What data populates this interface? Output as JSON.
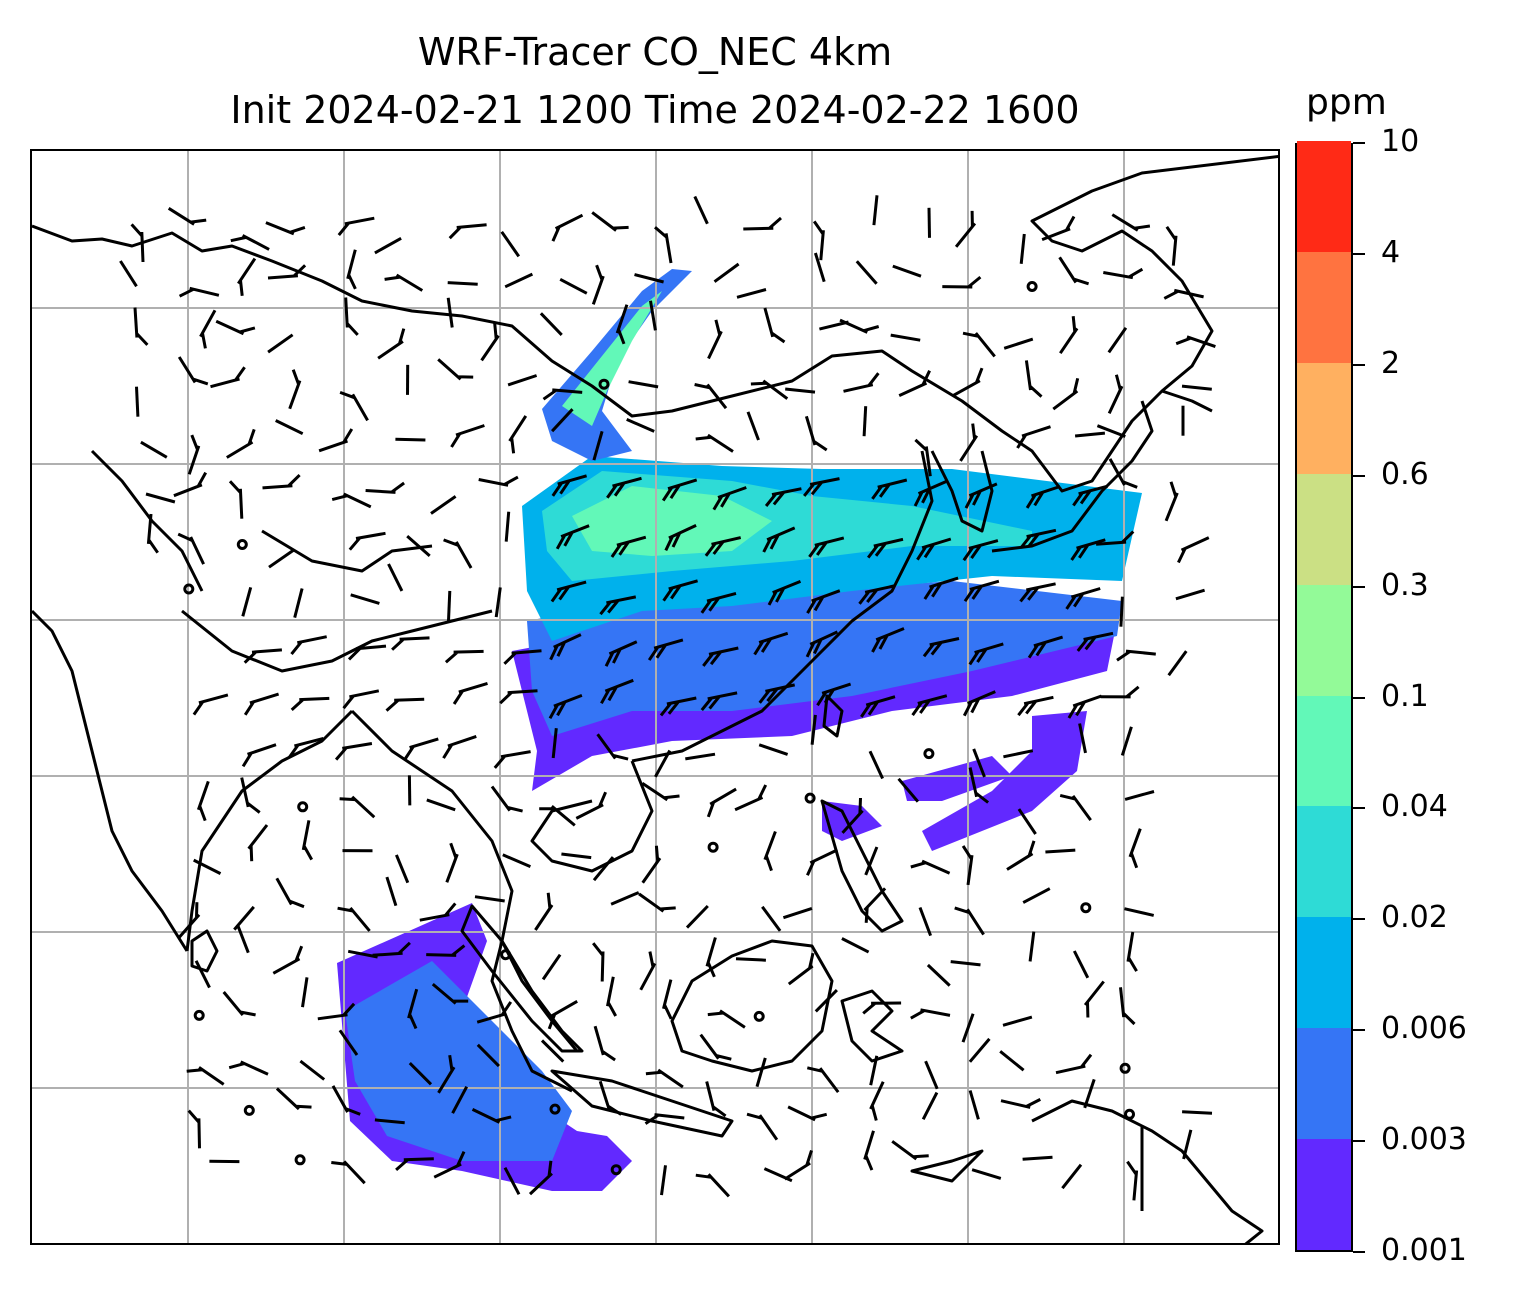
{
  "title": {
    "line1": "WRF-Tracer CO_NEC 4km",
    "line2": "Init 2024-02-21 1200 Time 2024-02-22 1600"
  },
  "colorbar": {
    "unit": "ppm",
    "levels": [
      "0.001",
      "0.003",
      "0.006",
      "0.02",
      "0.04",
      "0.1",
      "0.3",
      "0.6",
      "2",
      "4",
      "10"
    ],
    "colors": [
      "#6229ff",
      "#3575f5",
      "#00b1ec",
      "#2edbd6",
      "#62f8b8",
      "#93fa98",
      "#cbe084",
      "#ffb060",
      "#ff7340",
      "#ff2a16"
    ]
  },
  "map": {
    "gridlines": "on",
    "coastlines": "on",
    "field_colors": {
      "light": "#6229ff",
      "low": "#3575f5",
      "mid": "#00b1ec",
      "midhigh": "#2edbd6",
      "high": "#62f8b8"
    }
  }
}
